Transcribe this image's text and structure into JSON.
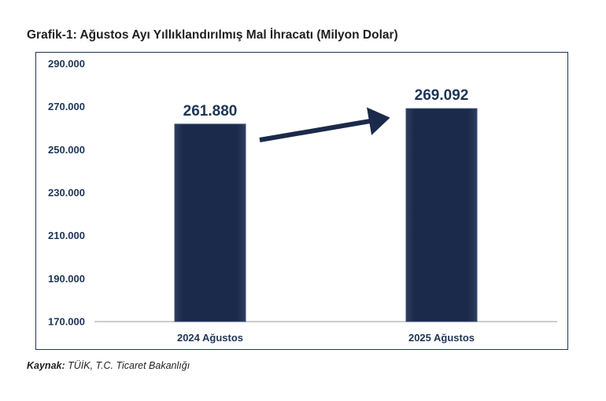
{
  "title": "Grafik-1: Ağustos Ayı Yıllıklandırılmış Mal İhracatı (Milyon Dolar)",
  "source": {
    "label": "Kaynak:",
    "text": "TÜİK, T.C. Ticaret Bakanlığı"
  },
  "colors": {
    "bar": "#1b2a4a",
    "bar_edge_light": "#3a4d74",
    "axis_text": "#1d3557",
    "arrow": "#1b2a4a",
    "frame": "#1d3557"
  },
  "chart_data": {
    "type": "bar",
    "title": "Grafik-1: Ağustos Ayı Yıllıklandırılmış Mal İhracatı (Milyon Dolar)",
    "categories": [
      "2024 Ağustos",
      "2025 Ağustos"
    ],
    "values": [
      261880,
      269092
    ],
    "data_labels": [
      "261.880",
      "269.092"
    ],
    "ylim": [
      170000,
      290000
    ],
    "yticks": [
      170000,
      190000,
      210000,
      230000,
      250000,
      270000,
      290000
    ],
    "ytick_labels": [
      "170.000",
      "190.000",
      "210.000",
      "230.000",
      "250.000",
      "270.000",
      "290.000"
    ],
    "grid": false,
    "annotations": [
      "arrow-up-right"
    ]
  }
}
